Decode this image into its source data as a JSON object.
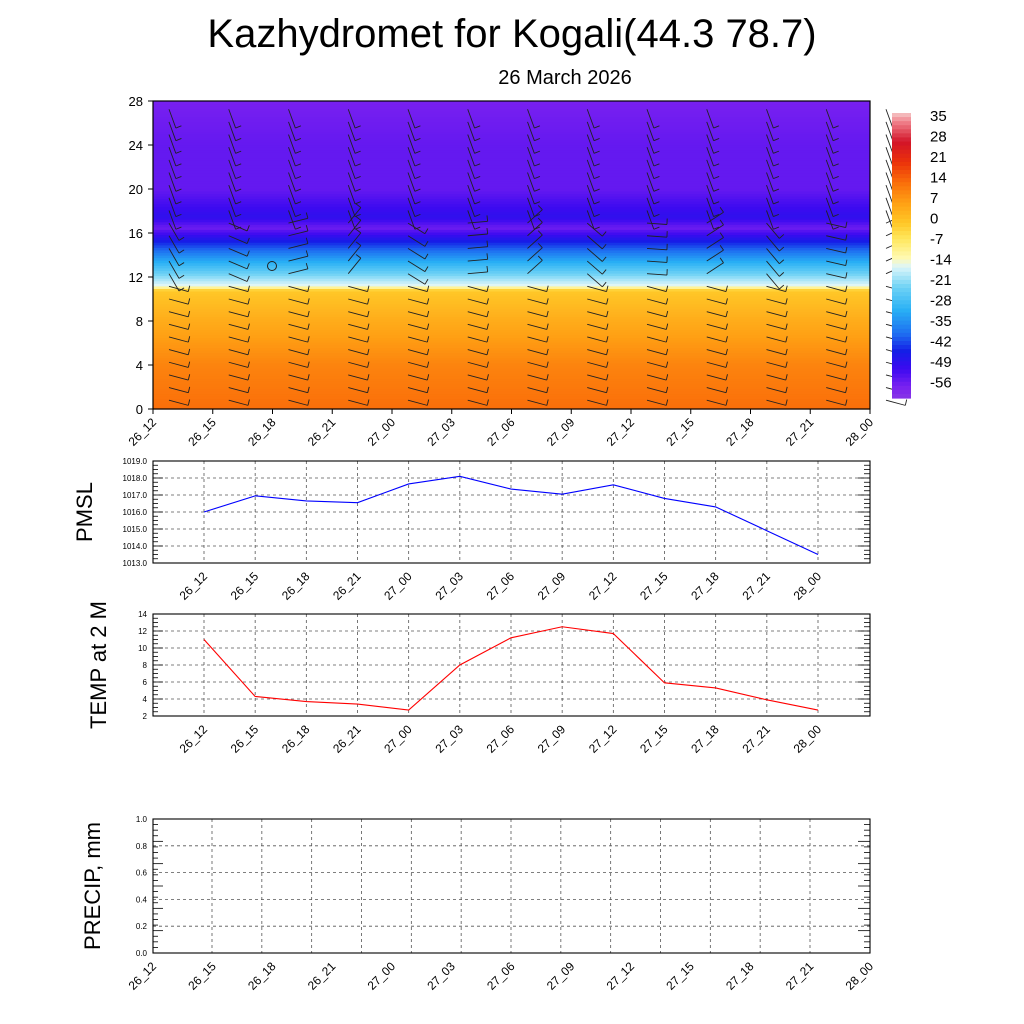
{
  "header": {
    "title": "Kazhydromet for Kogali(44.3 78.7)",
    "date": "26 March 2026"
  },
  "time_labels": [
    "26_12",
    "26_15",
    "26_18",
    "26_21",
    "27_00",
    "27_03",
    "27_06",
    "27_09",
    "27_12",
    "27_15",
    "27_18",
    "27_21",
    "28_00"
  ],
  "chart_data": [
    {
      "id": "cross-section",
      "type": "heatmap",
      "x": [
        "26_12",
        "26_15",
        "26_18",
        "26_21",
        "27_00",
        "27_03",
        "27_06",
        "27_09",
        "27_12",
        "27_15",
        "27_18",
        "27_21",
        "28_00"
      ],
      "y_ticks": [
        0,
        4,
        8,
        12,
        16,
        20,
        24,
        28
      ],
      "ylim": [
        0,
        28
      ],
      "colorbar": {
        "labels": [
          35,
          28,
          21,
          14,
          7,
          0,
          -7,
          -14,
          -21,
          -28,
          -35,
          -42,
          -49,
          -56
        ],
        "range": [
          -60,
          38
        ]
      },
      "temperature_profile_by_level": [
        {
          "level": 0,
          "value": 14
        },
        {
          "level": 4,
          "value": 11
        },
        {
          "level": 8,
          "value": 5
        },
        {
          "level": 10.8,
          "value": 0
        },
        {
          "level": 11.2,
          "value": -14
        },
        {
          "level": 13,
          "value": -27
        },
        {
          "level": 15,
          "value": -42
        },
        {
          "level": 16.5,
          "value": -55
        },
        {
          "level": 17.5,
          "value": -48
        },
        {
          "level": 20,
          "value": -54
        },
        {
          "level": 24,
          "value": -54
        },
        {
          "level": 28,
          "value": -56
        }
      ],
      "overlay": "wind barbs"
    },
    {
      "id": "pmsl",
      "type": "line",
      "ylabel": "PMSL",
      "x": [
        "26_12",
        "26_15",
        "26_18",
        "26_21",
        "27_00",
        "27_03",
        "27_06",
        "27_09",
        "27_12",
        "27_15",
        "27_18",
        "27_21",
        "28_00"
      ],
      "series": [
        {
          "values": [
            1016.0,
            1016.95,
            1016.65,
            1016.55,
            1017.65,
            1018.1,
            1017.35,
            1017.05,
            1017.6,
            1016.8,
            1016.3,
            1014.9,
            1013.5
          ]
        }
      ],
      "ylim": [
        1013.0,
        1019.0
      ],
      "y_ticks": [
        "1013.0",
        "1014.0",
        "1015.0",
        "1016.0",
        "1017.0",
        "1018.0",
        "1019.0"
      ],
      "color": "#0000ff",
      "grid": true
    },
    {
      "id": "temp2m",
      "type": "line",
      "ylabel": "TEMP at 2 M",
      "x": [
        "26_12",
        "26_15",
        "26_18",
        "26_21",
        "27_00",
        "27_03",
        "27_06",
        "27_09",
        "27_12",
        "27_15",
        "27_18",
        "27_21",
        "28_00"
      ],
      "series": [
        {
          "values": [
            11.0,
            4.3,
            3.7,
            3.4,
            2.7,
            8.0,
            11.2,
            12.5,
            11.7,
            5.9,
            5.3,
            3.9,
            2.7
          ]
        }
      ],
      "ylim": [
        2,
        14
      ],
      "y_ticks": [
        "2",
        "4",
        "6",
        "8",
        "10",
        "12",
        "14"
      ],
      "color": "#ff0000",
      "grid": true
    },
    {
      "id": "precip",
      "type": "line",
      "ylabel": "PRECIP, mm",
      "x": [
        "26_12",
        "26_15",
        "26_18",
        "26_21",
        "27_00",
        "27_03",
        "27_06",
        "27_09",
        "27_12",
        "27_15",
        "27_18",
        "27_21",
        "28_00"
      ],
      "series": [
        {
          "values": [
            0,
            0,
            0,
            0,
            0,
            0,
            0,
            0,
            0,
            0,
            0,
            0,
            0
          ]
        }
      ],
      "ylim": [
        0,
        1.0
      ],
      "y_ticks": [
        "0.0",
        "0.2",
        "0.4",
        "0.6",
        "0.8",
        "1.0"
      ],
      "color": "#00aa00",
      "grid": true
    }
  ],
  "colors": {
    "pmsl_line": "#0000ff",
    "temp_line": "#ff0000",
    "precip_line": "#008800",
    "grid": "#555555"
  }
}
